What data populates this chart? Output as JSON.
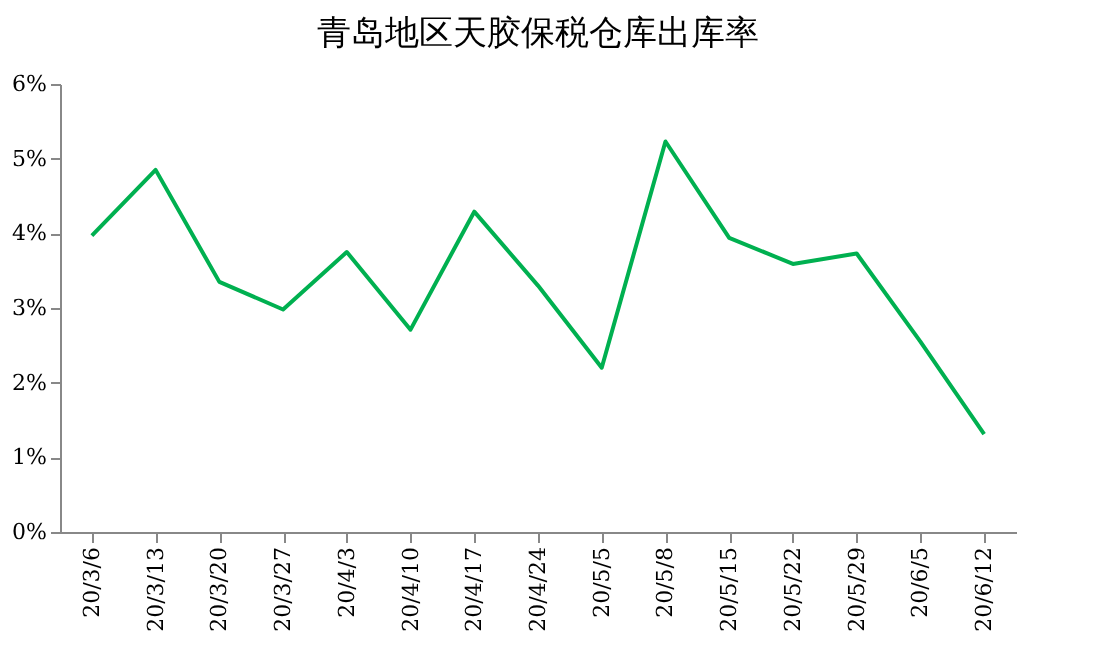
{
  "chart_data": {
    "type": "line",
    "title": "青岛地区天胶保税仓库出库率",
    "categories": [
      "20/3/6",
      "20/3/13",
      "20/3/20",
      "20/3/27",
      "20/4/3",
      "20/4/10",
      "20/4/17",
      "20/4/24",
      "20/5/5",
      "20/5/8",
      "20/5/15",
      "20/5/22",
      "20/5/29",
      "20/6/5",
      "20/6/12"
    ],
    "series": [
      {
        "color": "#00b050",
        "values": [
          3.97,
          4.85,
          3.35,
          2.98,
          3.75,
          2.71,
          4.29,
          3.3,
          2.2,
          5.23,
          3.94,
          3.59,
          3.73,
          2.55,
          1.31
        ]
      }
    ],
    "ylim": [
      0,
      6
    ],
    "yticks": [
      {
        "value": 0,
        "label": "0%"
      },
      {
        "value": 1,
        "label": "1%"
      },
      {
        "value": 2,
        "label": "2%"
      },
      {
        "value": 3,
        "label": "3%"
      },
      {
        "value": 4,
        "label": "4%"
      },
      {
        "value": 5,
        "label": "5%"
      },
      {
        "value": 6,
        "label": "6%"
      }
    ],
    "grid": false,
    "marker": "none",
    "line_style": "solid"
  }
}
